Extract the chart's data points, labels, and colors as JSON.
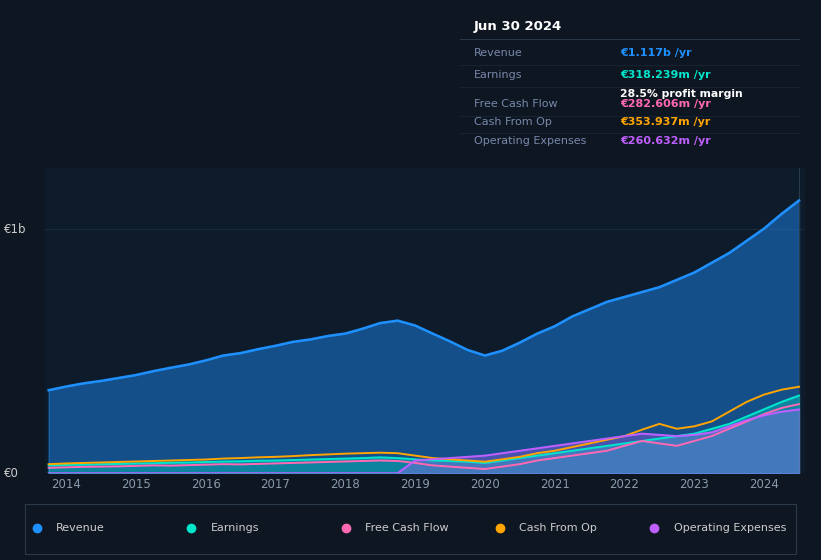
{
  "bg_color": "#0e1621",
  "plot_bg_color": "#0d1b2a",
  "grid_color": "#1e2d3d",
  "title_box": {
    "date": "Jun 30 2024",
    "rows": [
      {
        "label": "Revenue",
        "value": "€1.117b",
        "value_color": "#1e90ff",
        "suffix": " /yr",
        "extra": null
      },
      {
        "label": "Earnings",
        "value": "€318.239m",
        "value_color": "#00e5cc",
        "suffix": " /yr",
        "extra": "28.5% profit margin"
      },
      {
        "label": "Free Cash Flow",
        "value": "€282.606m",
        "value_color": "#ff69b4",
        "suffix": " /yr",
        "extra": null
      },
      {
        "label": "Cash From Op",
        "value": "€353.937m",
        "value_color": "#ffa500",
        "suffix": " /yr",
        "extra": null
      },
      {
        "label": "Operating Expenses",
        "value": "€260.632m",
        "value_color": "#bf5fff",
        "suffix": " /yr",
        "extra": null
      }
    ]
  },
  "x_years": [
    2013.75,
    2014.0,
    2014.25,
    2014.5,
    2014.75,
    2015.0,
    2015.25,
    2015.5,
    2015.75,
    2016.0,
    2016.25,
    2016.5,
    2016.75,
    2017.0,
    2017.25,
    2017.5,
    2017.75,
    2018.0,
    2018.25,
    2018.5,
    2018.75,
    2019.0,
    2019.25,
    2019.5,
    2019.75,
    2020.0,
    2020.25,
    2020.5,
    2020.75,
    2021.0,
    2021.25,
    2021.5,
    2021.75,
    2022.0,
    2022.25,
    2022.5,
    2022.75,
    2023.0,
    2023.25,
    2023.5,
    2023.75,
    2024.0,
    2024.25,
    2024.5
  ],
  "revenue": [
    340,
    355,
    368,
    378,
    390,
    402,
    418,
    432,
    445,
    462,
    482,
    492,
    508,
    522,
    538,
    548,
    562,
    572,
    592,
    615,
    625,
    605,
    572,
    540,
    505,
    482,
    502,
    535,
    572,
    602,
    642,
    672,
    702,
    722,
    742,
    762,
    792,
    822,
    862,
    902,
    952,
    1002,
    1062,
    1117
  ],
  "earnings": [
    32,
    34,
    35,
    37,
    38,
    40,
    41,
    43,
    44,
    46,
    48,
    49,
    51,
    52,
    54,
    56,
    58,
    60,
    62,
    65,
    62,
    57,
    52,
    50,
    47,
    42,
    52,
    62,
    72,
    82,
    92,
    102,
    112,
    122,
    132,
    142,
    152,
    162,
    182,
    202,
    232,
    262,
    292,
    318
  ],
  "free_cash_flow": [
    22,
    24,
    26,
    27,
    28,
    30,
    32,
    31,
    33,
    35,
    37,
    36,
    38,
    40,
    42,
    44,
    46,
    48,
    50,
    52,
    50,
    42,
    32,
    27,
    22,
    17,
    27,
    37,
    52,
    62,
    72,
    82,
    92,
    112,
    132,
    122,
    112,
    132,
    152,
    182,
    212,
    242,
    267,
    283
  ],
  "cash_from_op": [
    37,
    40,
    42,
    44,
    46,
    48,
    50,
    52,
    54,
    56,
    60,
    62,
    65,
    67,
    70,
    74,
    77,
    80,
    82,
    84,
    82,
    72,
    62,
    57,
    52,
    47,
    57,
    67,
    82,
    92,
    107,
    122,
    137,
    152,
    178,
    202,
    182,
    192,
    212,
    252,
    292,
    322,
    342,
    354
  ],
  "operating_expenses": [
    0,
    0,
    0,
    0,
    0,
    0,
    0,
    0,
    0,
    0,
    0,
    0,
    0,
    0,
    0,
    0,
    0,
    0,
    0,
    0,
    0,
    52,
    57,
    62,
    67,
    72,
    82,
    92,
    102,
    112,
    122,
    132,
    142,
    152,
    162,
    157,
    152,
    157,
    167,
    192,
    217,
    237,
    252,
    261
  ],
  "revenue_color": "#1e90ff",
  "earnings_color": "#00e5cc",
  "free_cash_flow_color": "#ff69b4",
  "cash_from_op_color": "#ffa500",
  "operating_expenses_color": "#bf5fff",
  "revenue_fill_alpha": 0.45,
  "earnings_fill_alpha": 0.35,
  "opex_fill_alpha": 0.3,
  "x_ticks": [
    2014,
    2015,
    2016,
    2017,
    2018,
    2019,
    2020,
    2021,
    2022,
    2023,
    2024
  ],
  "x_tick_labels": [
    "2014",
    "2015",
    "2016",
    "2017",
    "2018",
    "2019",
    "2020",
    "2021",
    "2022",
    "2023",
    "2024"
  ],
  "ylim": [
    0,
    1250
  ],
  "legend_items": [
    {
      "label": "Revenue",
      "color": "#1e90ff"
    },
    {
      "label": "Earnings",
      "color": "#00e5cc"
    },
    {
      "label": "Free Cash Flow",
      "color": "#ff69b4"
    },
    {
      "label": "Cash From Op",
      "color": "#ffa500"
    },
    {
      "label": "Operating Expenses",
      "color": "#bf5fff"
    }
  ]
}
